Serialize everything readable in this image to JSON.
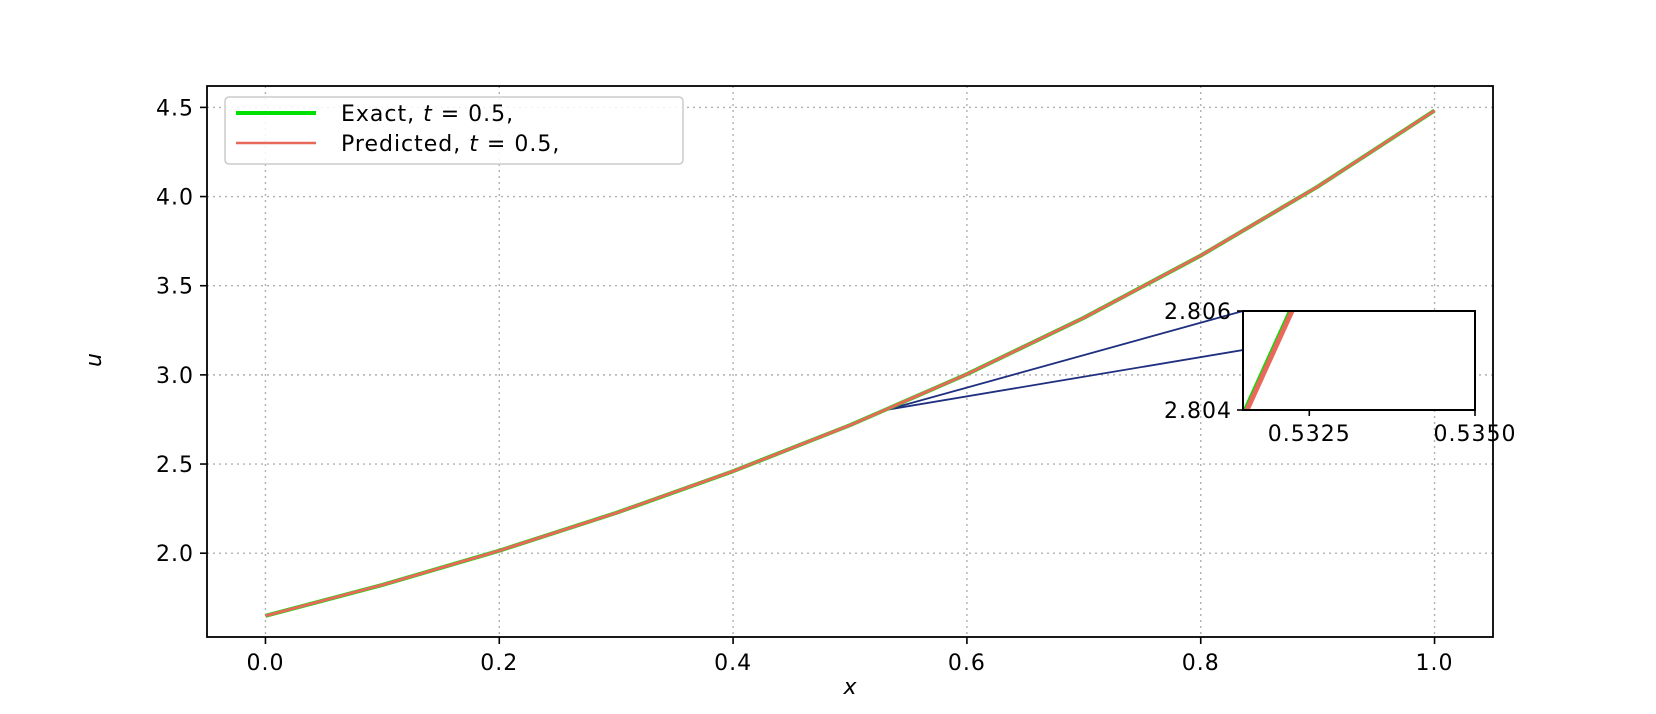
{
  "chart_data": {
    "type": "line",
    "title": "",
    "xlabel": "x",
    "ylabel": "u",
    "xlim": [
      -0.05,
      1.05
    ],
    "ylim": [
      1.53,
      4.62
    ],
    "xticks": [
      "0.0",
      "0.2",
      "0.4",
      "0.6",
      "0.8",
      "1.0"
    ],
    "yticks": [
      "2.0",
      "2.5",
      "3.0",
      "3.5",
      "4.0",
      "4.5"
    ],
    "grid": true,
    "legend_position": "top-left",
    "series": [
      {
        "name": "Exact, t = 0.5,",
        "legend_main": "Exact, ",
        "legend_var": "t",
        "legend_rest": " = 0.5,",
        "color": "#00e000",
        "x": [
          0.0,
          0.1,
          0.2,
          0.3,
          0.4,
          0.5,
          0.6,
          0.7,
          0.8,
          0.9,
          1.0
        ],
        "y": [
          1.649,
          1.822,
          2.014,
          2.226,
          2.46,
          2.718,
          3.004,
          3.32,
          3.669,
          4.055,
          4.482
        ]
      },
      {
        "name": "Predicted, t = 0.5,",
        "legend_main": "Predicted, ",
        "legend_var": "t",
        "legend_rest": " = 0.5,",
        "color": "#e8685a",
        "x": [
          0.0,
          0.1,
          0.2,
          0.3,
          0.4,
          0.5,
          0.6,
          0.7,
          0.8,
          0.9,
          1.0
        ],
        "y": [
          1.649,
          1.822,
          2.014,
          2.226,
          2.46,
          2.718,
          3.004,
          3.32,
          3.669,
          4.055,
          4.482
        ]
      }
    ],
    "inset": {
      "xlim": [
        0.5315,
        0.535
      ],
      "ylim": [
        2.804,
        2.806
      ],
      "xticks": [
        "0.5325",
        "0.5350"
      ],
      "yticks": [
        "2.804",
        "2.806"
      ],
      "connector_color": "#1f2f80",
      "zoom_point": [
        0.5315,
        2.804
      ]
    }
  }
}
